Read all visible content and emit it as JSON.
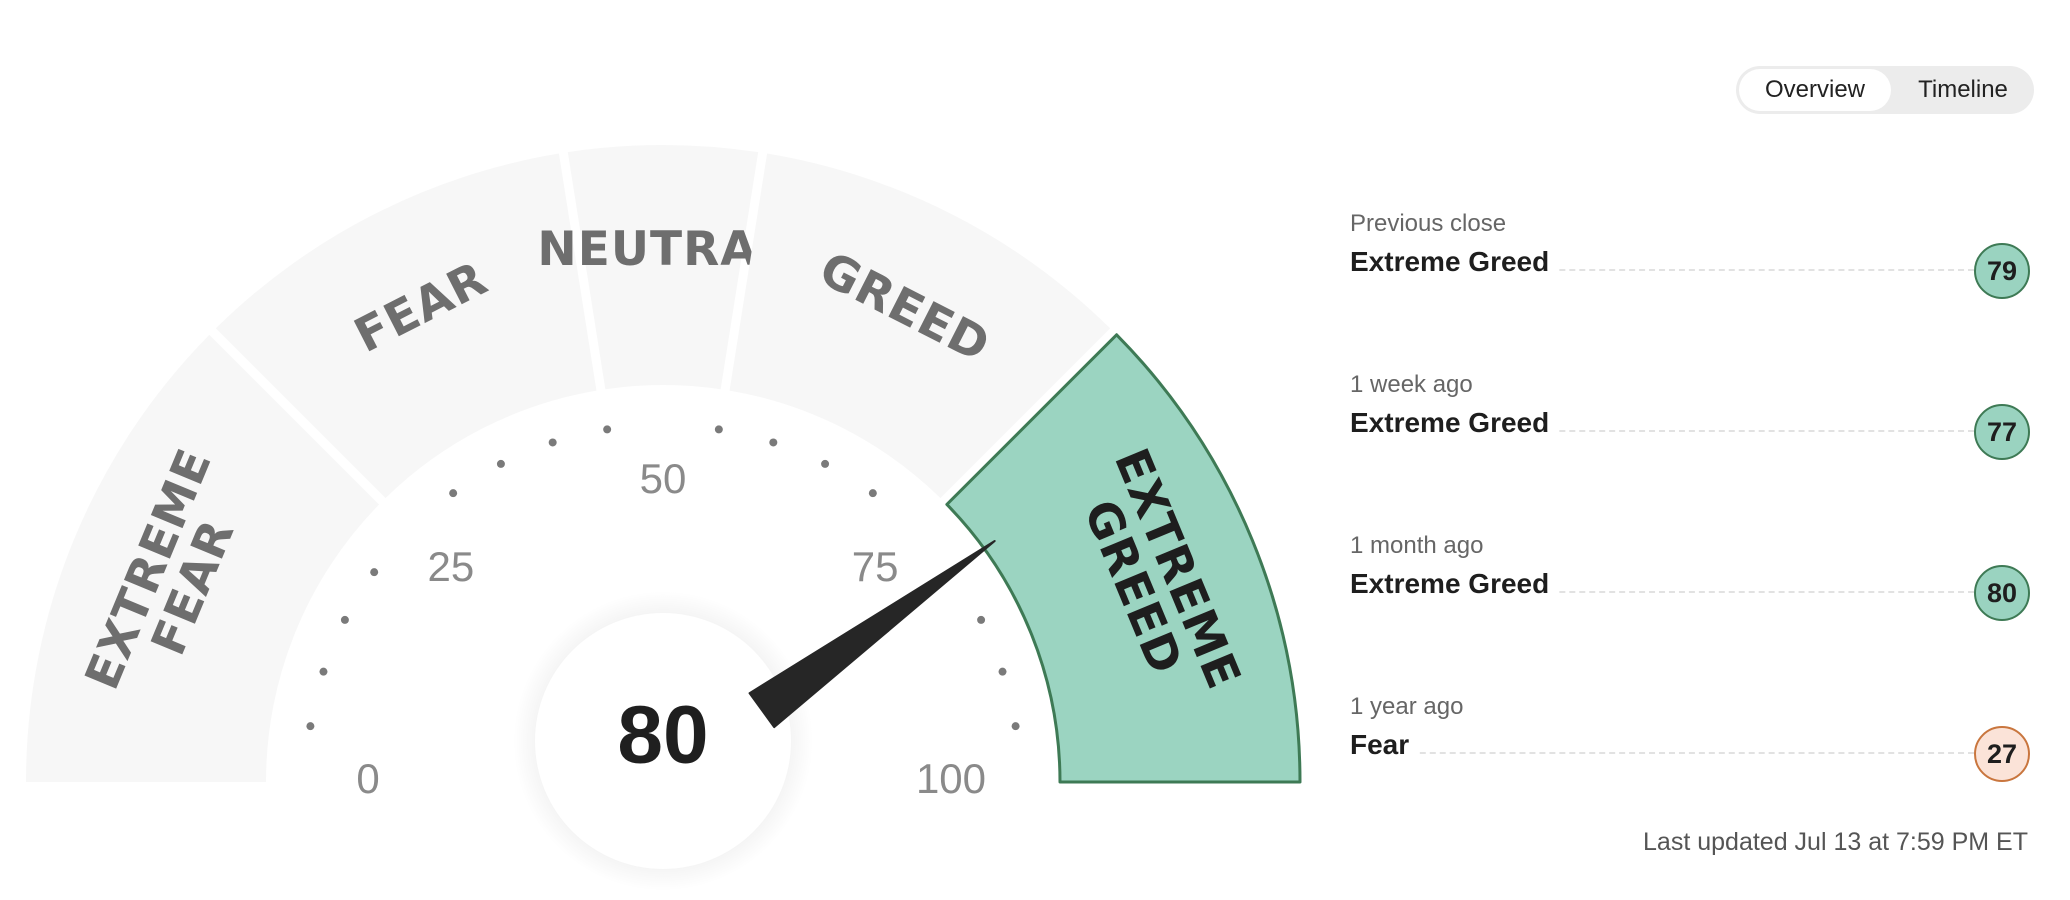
{
  "gauge": {
    "score": 80,
    "active_segment": "extreme-greed",
    "segments": [
      {
        "id": "extreme-fear",
        "lines": [
          "EXTREME",
          "FEAR"
        ],
        "range": [
          0,
          25
        ]
      },
      {
        "id": "fear",
        "lines": [
          "FEAR"
        ],
        "range": [
          25,
          45
        ]
      },
      {
        "id": "neutral",
        "lines": [
          "NEUTRAL"
        ],
        "range": [
          45,
          55
        ]
      },
      {
        "id": "greed",
        "lines": [
          "GREED"
        ],
        "range": [
          55,
          75
        ]
      },
      {
        "id": "extreme-greed",
        "lines": [
          "EXTREME",
          "GREED"
        ],
        "range": [
          75,
          100
        ]
      }
    ],
    "tick_labels": [
      "0",
      "25",
      "50",
      "75",
      "100"
    ],
    "colors": {
      "inactive_fill": "#f7f7f7",
      "inactive_text": "#6e6e6e",
      "active_fill": "#9bd4c1",
      "active_stroke": "#3e7a55",
      "active_text": "#1e1e1e",
      "needle": "#262626",
      "tick_label": "#8a8a8a",
      "dot": "#7a7a7a"
    }
  },
  "view_toggle": {
    "options": [
      "Overview",
      "Timeline"
    ],
    "selected": "Overview"
  },
  "history": [
    {
      "period": "Previous close",
      "rating": "Extreme Greed",
      "value": "79",
      "tone": "greed"
    },
    {
      "period": "1 week ago",
      "rating": "Extreme Greed",
      "value": "77",
      "tone": "greed"
    },
    {
      "period": "1 month ago",
      "rating": "Extreme Greed",
      "value": "80",
      "tone": "greed"
    },
    {
      "period": "1 year ago",
      "rating": "Fear",
      "value": "27",
      "tone": "fear"
    }
  ],
  "last_updated": "Last updated Jul 13 at 7:59 PM ET"
}
